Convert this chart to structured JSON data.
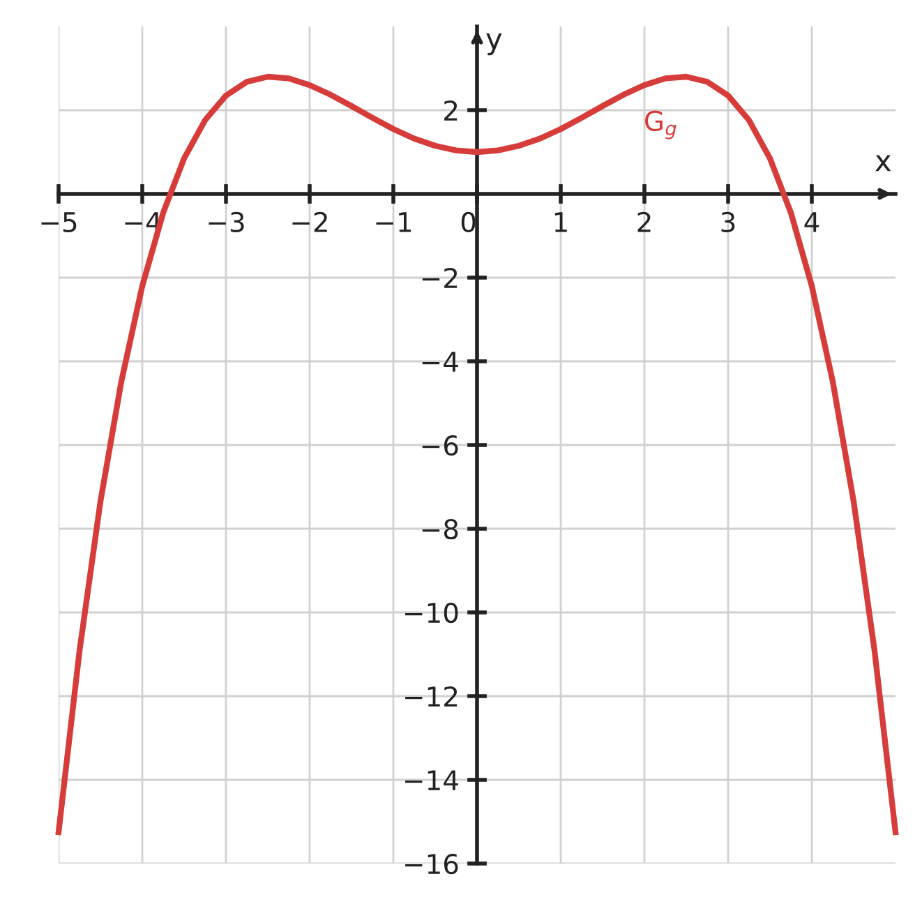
{
  "chart_data": {
    "type": "line",
    "xlabel": "x",
    "ylabel": "y",
    "x": [
      -5,
      -4.75,
      -4.5,
      -4.25,
      -4,
      -3.75,
      -3.5,
      -3.25,
      -3,
      -2.75,
      -2.5,
      -2.25,
      -2,
      -1.75,
      -1.5,
      -1.25,
      -1,
      -0.75,
      -0.5,
      -0.25,
      0,
      0.25,
      0.5,
      0.75,
      1,
      1.25,
      1.5,
      1.75,
      2,
      2.25,
      2.5,
      2.75,
      3,
      3.25,
      3.5,
      3.75,
      4,
      4.25,
      4.5,
      4.75,
      5
    ],
    "series": [
      {
        "name": "G$_{g}$",
        "color": "#d63d3a",
        "values": [
          -15.25,
          -10.92,
          -7.35,
          -4.48,
          -2.2,
          -0.45,
          0.85,
          1.76,
          2.35,
          2.68,
          2.8,
          2.76,
          2.6,
          2.37,
          2.1,
          1.82,
          1.55,
          1.32,
          1.15,
          1.04,
          1,
          1.04,
          1.15,
          1.32,
          1.55,
          1.82,
          2.1,
          2.37,
          2.6,
          2.76,
          2.8,
          2.68,
          2.35,
          1.76,
          0.85,
          -0.45,
          -2.2,
          -4.48,
          -7.35,
          -10.92,
          -15.25
        ]
      }
    ],
    "xlim": [
      -5,
      5
    ],
    "ylim": [
      -16,
      4
    ],
    "xticks": [
      -5,
      -4,
      -3,
      -2,
      -1,
      0,
      1,
      2,
      3,
      4
    ],
    "yticks": [
      2,
      -2,
      -4,
      -6,
      -8,
      -10,
      -12,
      -14,
      -16
    ],
    "grid": true,
    "legend": false,
    "marker": "none",
    "line_style": "solid"
  }
}
